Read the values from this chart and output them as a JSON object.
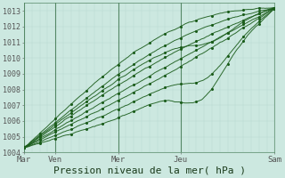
{
  "title": "",
  "xlabel": "Pression niveau de la mer( hPa )",
  "ylabel": "",
  "ylim": [
    1004,
    1013.5
  ],
  "xlim": [
    0,
    96
  ],
  "yticks": [
    1004,
    1005,
    1006,
    1007,
    1008,
    1009,
    1010,
    1011,
    1012,
    1013
  ],
  "xtick_positions": [
    0,
    12,
    36,
    60,
    96
  ],
  "xtick_labels": [
    "Mar",
    "Ven",
    "Mer",
    "Jeu",
    "Sam"
  ],
  "bg_color": "#cce8e0",
  "grid_color_minor": "#b8d8d0",
  "grid_color_major": "#90b8b0",
  "line_color": "#1a5c1a",
  "fig_bg": "#cce8e0",
  "ylabel_fontsize": 7,
  "xlabel_fontsize": 8
}
